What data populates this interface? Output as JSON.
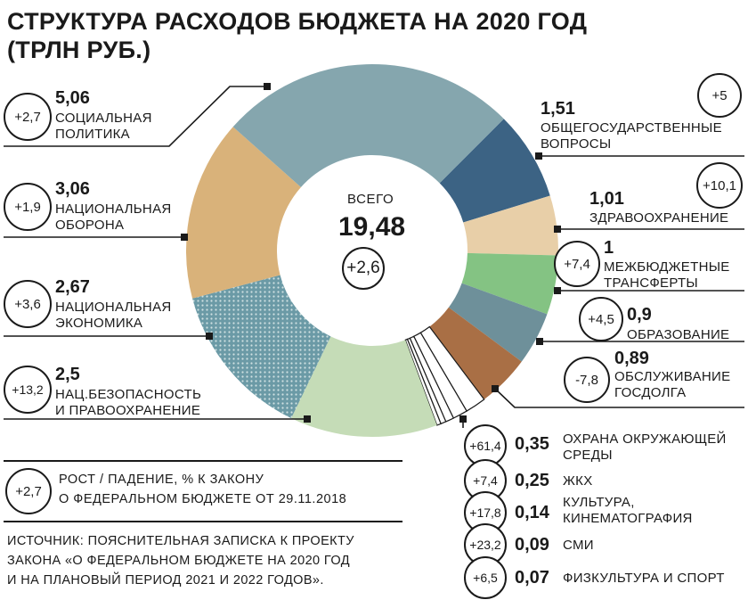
{
  "title": "СТРУКТУРА РАСХОДОВ БЮДЖЕТА НА 2020 ГОД (ТРЛН РУБ.)",
  "center": {
    "label": "ВСЕГО",
    "total": "19,48",
    "change": "+2,6"
  },
  "chart_data": {
    "type": "pie",
    "title": "СТРУКТУРА РАСХОДОВ БЮДЖЕТА НА 2020 ГОД (ТРЛН РУБ.)",
    "total": 19.48,
    "total_change_pct": 2.6,
    "unit": "трлн руб.",
    "slices": [
      {
        "name": "ОБЩЕГОСУДАРСТВЕННЫЕ ВОПРОСЫ",
        "value": 1.51,
        "value_label": "1,51",
        "change": "+5",
        "color": "#3c6384"
      },
      {
        "name": "ЗДРАВООХРАНЕНИЕ",
        "value": 1.01,
        "value_label": "1,01",
        "change": "+10,1",
        "color": "#e8cfa8"
      },
      {
        "name": "МЕЖБЮДЖЕТНЫЕ ТРАНСФЕРТЫ",
        "value": 1,
        "value_label": "1",
        "change": "+7,4",
        "color": "#84c383"
      },
      {
        "name": "ОБРАЗОВАНИЕ",
        "value": 0.9,
        "value_label": "0,9",
        "change": "+4,5",
        "color": "#6e909a"
      },
      {
        "name": "ОБСЛУЖИВАНИЕ ГОСДОЛГА",
        "value": 0.89,
        "value_label": "0,89",
        "change": "-7,8",
        "color": "#a96f45"
      },
      {
        "name": "ОХРАНА ОКРУЖАЮЩЕЙ СРЕДЫ",
        "value": 0.35,
        "value_label": "0,35",
        "change": "+61,4",
        "color": "#ffffff"
      },
      {
        "name": "ЖКХ",
        "value": 0.25,
        "value_label": "0,25",
        "change": "+7,4",
        "color": "#ffffff"
      },
      {
        "name": "КУЛЬТУРА, КИНЕМАТОГРАФИЯ",
        "value": 0.14,
        "value_label": "0,14",
        "change": "+17,8",
        "color": "#ffffff"
      },
      {
        "name": "СМИ",
        "value": 0.09,
        "value_label": "0,09",
        "change": "+23,2",
        "color": "#ffffff"
      },
      {
        "name": "ФИЗКУЛЬТУРА И СПОРТ",
        "value": 0.07,
        "value_label": "0,07",
        "change": "+6,5",
        "color": "#ffffff"
      },
      {
        "name": "НАЦ.БЕЗОПАСНОСТЬ И ПРАВООХРАНЕНИЕ",
        "value": 2.5,
        "value_label": "2,5",
        "change": "+13,2",
        "color": "#c5dcb7"
      },
      {
        "name": "НАЦИОНАЛЬНАЯ ЭКОНОМИКА",
        "value": 2.67,
        "value_label": "2,67",
        "change": "+3,6",
        "color": "#6b9aa6",
        "pattern": "dotted"
      },
      {
        "name": "НАЦИОНАЛЬНАЯ ОБОРОНА",
        "value": 3.06,
        "value_label": "3,06",
        "change": "+1,9",
        "color": "#d9b27a"
      },
      {
        "name": "СОЦИАЛЬНАЯ ПОЛИТИКА",
        "value": 5.06,
        "value_label": "5,06",
        "change": "+2,7",
        "color": "#85a6ae"
      }
    ]
  },
  "labels": {
    "social": {
      "value": "5,06",
      "line1": "СОЦИАЛЬНАЯ",
      "line2": "ПОЛИТИКА",
      "change": "+2,7"
    },
    "defense": {
      "value": "3,06",
      "line1": "НАЦИОНАЛЬНАЯ",
      "line2": "ОБОРОНА",
      "change": "+1,9"
    },
    "economy": {
      "value": "2,67",
      "line1": "НАЦИОНАЛЬНАЯ",
      "line2": "ЭКОНОМИКА",
      "change": "+3,6"
    },
    "security": {
      "value": "2,5",
      "line1": "НАЦ.БЕЗОПАСНОСТЬ",
      "line2": "И ПРАВООХРАНЕНИЕ",
      "change": "+13,2"
    },
    "general": {
      "value": "1,51",
      "line1": "ОБЩЕГОСУДАРСТВЕННЫЕ",
      "line2": "ВОПРОСЫ",
      "change": "+5"
    },
    "health": {
      "value": "1,01",
      "line1": "ЗДРАВООХРАНЕНИЕ",
      "change": "+10,1"
    },
    "transfers": {
      "value": "1",
      "line1": "МЕЖБЮДЖЕТНЫЕ",
      "line2": "ТРАНСФЕРТЫ",
      "change": "+7,4"
    },
    "education": {
      "value": "0,9",
      "line1": "ОБРАЗОВАНИЕ",
      "change": "+4,5"
    },
    "debt": {
      "value": "0,89",
      "line1": "ОБСЛУЖИВАНИЕ",
      "line2": "ГОСДОЛГА",
      "change": "-7,8"
    },
    "env": {
      "value": "0,35",
      "line1": "ОХРАНА ОКРУЖАЮЩЕЙ",
      "line2": "СРЕДЫ",
      "change": "+61,4"
    },
    "housing": {
      "value": "0,25",
      "line1": "ЖКХ",
      "change": "+7,4"
    },
    "culture": {
      "value": "0,14",
      "line1": "КУЛЬТУРА,",
      "line2": "КИНЕМАТОГРАФИЯ",
      "change": "+17,8"
    },
    "media": {
      "value": "0,09",
      "line1": "СМИ",
      "change": "+23,2"
    },
    "sport": {
      "value": "0,07",
      "line1": "ФИЗКУЛЬТУРА И СПОРТ",
      "change": "+6,5"
    }
  },
  "legend": {
    "sample": "+2,7",
    "line1": "РОСТ / ПАДЕНИЕ, % К ЗАКОНУ",
    "line2": "О ФЕДЕРАЛЬНОМ БЮДЖЕТЕ ОТ 29.11.2018"
  },
  "source": {
    "line1": "ИСТОЧНИК: ПОЯСНИТЕЛЬНАЯ ЗАПИСКА К ПРОЕКТУ",
    "line2": "ЗАКОНА «О ФЕДЕРАЛЬНОМ БЮДЖЕТЕ НА 2020 ГОД",
    "line3": "И НА ПЛАНОВЫЙ ПЕРИОД 2021 И 2022 ГОДОВ»."
  }
}
